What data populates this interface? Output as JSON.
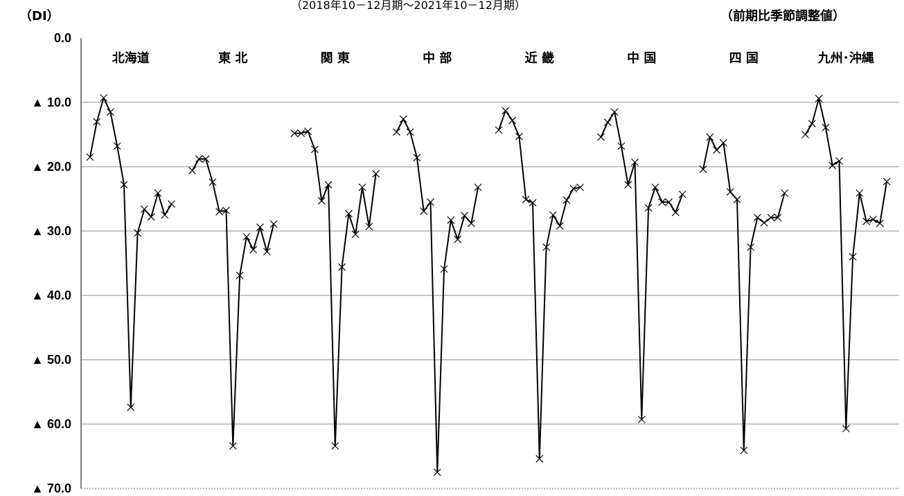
{
  "header": {
    "unit_label": "（DI）",
    "subtitle": "（2018年10－12月期～2021年10－12月期）",
    "note": "（前期比季節調整値）"
  },
  "chart_data": {
    "type": "line",
    "title": "",
    "xlabel": "",
    "ylabel": "（DI）",
    "ylim": [
      -70,
      0
    ],
    "y_ticks": [
      0,
      -10,
      -20,
      -30,
      -40,
      -50,
      -60,
      -70
    ],
    "y_tick_labels": [
      "0.0",
      "▲ 10.0",
      "▲ 20.0",
      "▲ 30.0",
      "▲ 40.0",
      "▲ 50.0",
      "▲ 60.0",
      "▲ 70.0"
    ],
    "grid": true,
    "marker": "x",
    "series": [
      {
        "name": "北海道",
        "values": [
          -18.5,
          -13.0,
          -9.3,
          -11.5,
          -16.8,
          -22.8,
          -57.4,
          -30.3,
          -26.6,
          -27.8,
          -24.1,
          -27.5,
          -25.8
        ]
      },
      {
        "name": "東 北",
        "values": [
          -20.6,
          -18.8,
          -18.8,
          -22.4,
          -27.0,
          -26.8,
          -63.4,
          -36.9,
          -30.9,
          -32.9,
          -29.4,
          -33.2,
          -28.9
        ]
      },
      {
        "name": "関 東",
        "values": [
          -14.8,
          -14.8,
          -14.5,
          -17.3,
          -25.3,
          -22.8,
          -63.4,
          -35.6,
          -27.3,
          -30.5,
          -23.2,
          -29.3,
          -21.1
        ]
      },
      {
        "name": "中 部",
        "values": [
          -14.6,
          -12.6,
          -14.6,
          -18.6,
          -26.9,
          -25.5,
          -67.5,
          -35.9,
          -28.3,
          -31.3,
          -27.6,
          -28.8,
          -23.2
        ]
      },
      {
        "name": "近 畿",
        "values": [
          -14.3,
          -11.3,
          -12.8,
          -15.3,
          -25.1,
          -25.6,
          -65.4,
          -32.5,
          -27.5,
          -29.2,
          -25.2,
          -23.4,
          -23.2
        ]
      },
      {
        "name": "中 国",
        "values": [
          -15.4,
          -13.1,
          -11.5,
          -16.8,
          -22.8,
          -19.3,
          -59.3,
          -26.4,
          -23.2,
          -25.5,
          -25.5,
          -27.1,
          -24.3
        ]
      },
      {
        "name": "四 国",
        "values": [
          -20.4,
          -15.4,
          -17.4,
          -16.3,
          -23.9,
          -25.1,
          -64.1,
          -32.5,
          -27.9,
          -28.7,
          -27.9,
          -27.9,
          -24.1
        ]
      },
      {
        "name": "九州･沖縄",
        "values": [
          -15.0,
          -13.3,
          -9.4,
          -13.9,
          -19.8,
          -19.1,
          -60.7,
          -34.0,
          -24.1,
          -28.5,
          -28.2,
          -28.8,
          -22.3
        ]
      }
    ]
  }
}
